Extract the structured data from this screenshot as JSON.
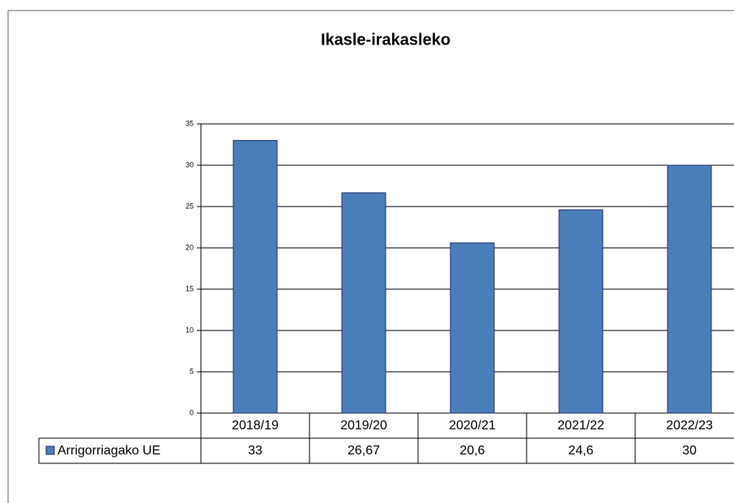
{
  "chart_data": {
    "type": "bar",
    "title": "Ikasle-irakasleko",
    "categories": [
      "2018/19",
      "2019/20",
      "2020/21",
      "2021/22",
      "2022/23"
    ],
    "series": [
      {
        "name": "Arrigorriagako UE",
        "color": "#4a7ebb",
        "values": [
          33,
          26.67,
          20.6,
          24.6,
          30
        ],
        "value_labels": [
          "33",
          "26,67",
          "20,6",
          "24,6",
          "30"
        ]
      }
    ],
    "ylim": [
      0,
      35
    ],
    "yticks": [
      0,
      5,
      10,
      15,
      20,
      25,
      30,
      35
    ],
    "grid": true
  }
}
